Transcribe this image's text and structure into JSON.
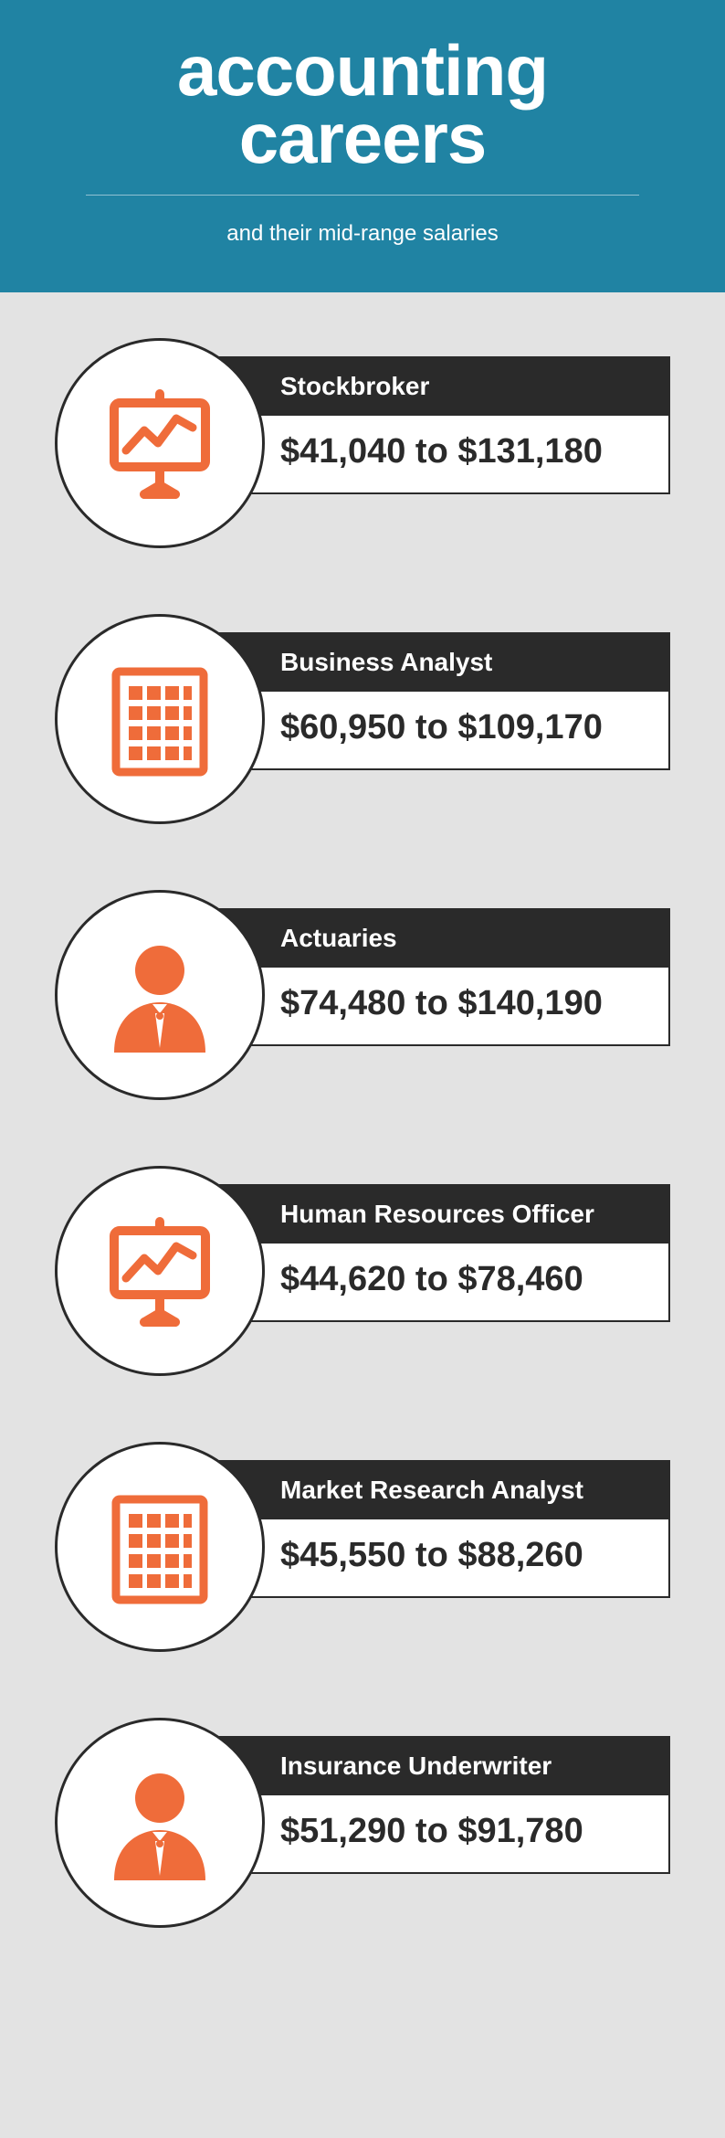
{
  "header": {
    "title_line1": "accounting",
    "title_line2": "careers",
    "subtitle": "and their mid-range salaries",
    "background_color": "#2083a3",
    "text_color": "#ffffff",
    "title_fontsize": 78,
    "subtitle_fontsize": 24
  },
  "body": {
    "background_color": "#e3e3e3"
  },
  "icon_color": "#ef6c3a",
  "circle_border_color": "#2a2a2a",
  "title_bar_color": "#2a2a2a",
  "careers": [
    {
      "title": "Stockbroker",
      "salary": "$41,040 to $131,180",
      "icon": "chart"
    },
    {
      "title": "Business Analyst",
      "salary": "$60,950 to $109,170",
      "icon": "building"
    },
    {
      "title": "Actuaries",
      "salary": "$74,480 to $140,190",
      "icon": "person"
    },
    {
      "title": "Human Resources Officer",
      "salary": "$44,620 to $78,460",
      "icon": "chart"
    },
    {
      "title": "Market Research Analyst",
      "salary": "$45,550 to $88,260",
      "icon": "building"
    },
    {
      "title": "Insurance Underwriter",
      "salary": "$51,290 to $91,780",
      "icon": "person"
    }
  ]
}
